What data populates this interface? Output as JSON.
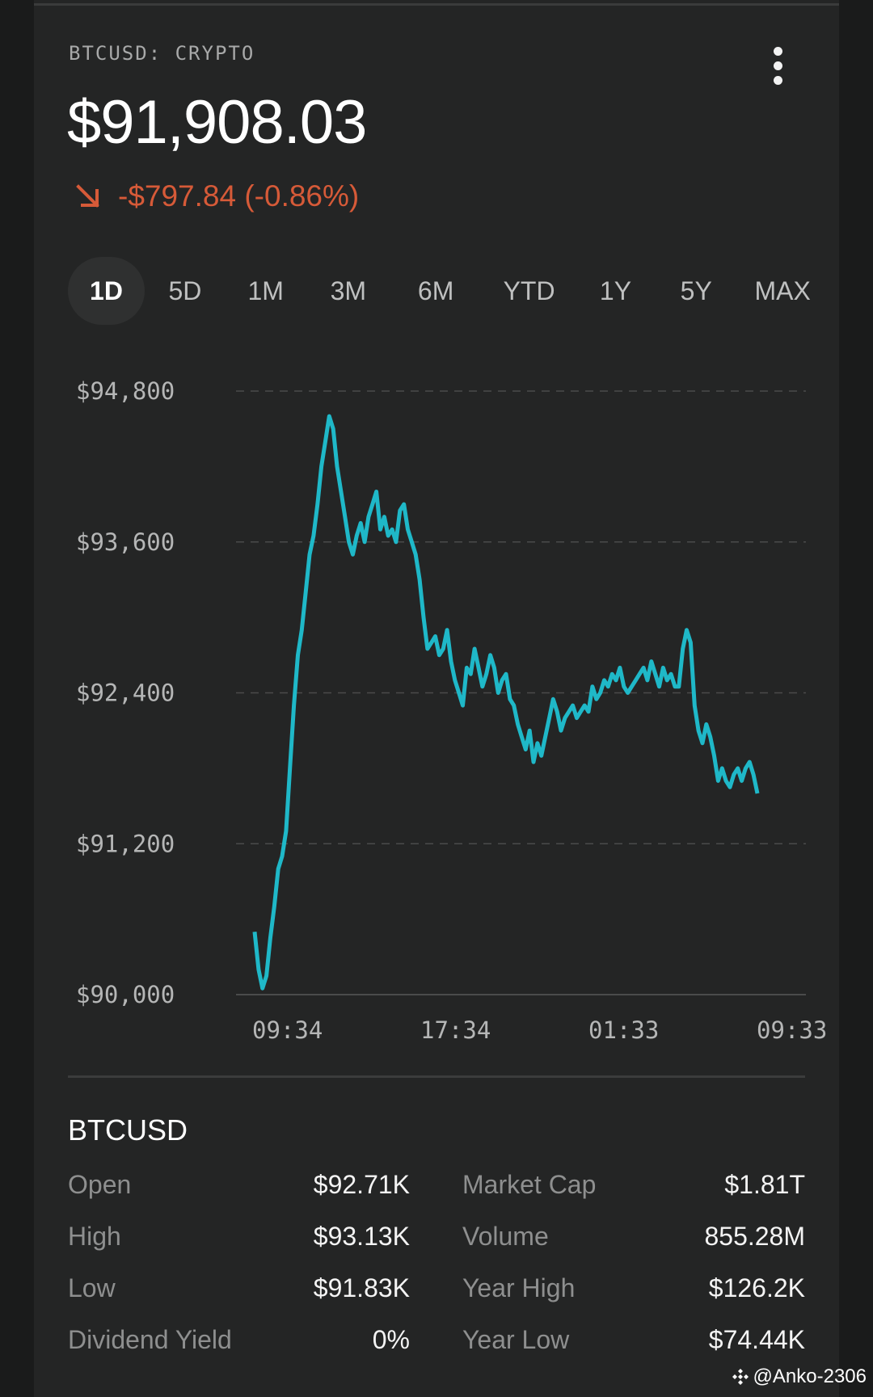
{
  "header": {
    "ticker": "BTCUSD: CRYPTO",
    "price": "$91,908.03",
    "change": "-$797.84 (-0.86%)",
    "change_color": "#d65a38"
  },
  "tabs": [
    {
      "label": "1D",
      "active": true
    },
    {
      "label": "5D",
      "active": false
    },
    {
      "label": "1M",
      "active": false
    },
    {
      "label": "3M",
      "active": false
    },
    {
      "label": "6M",
      "active": false
    },
    {
      "label": "YTD",
      "active": false
    },
    {
      "label": "1Y",
      "active": false
    },
    {
      "label": "5Y",
      "active": false
    },
    {
      "label": "MAX",
      "active": false
    }
  ],
  "chart_data": {
    "type": "line",
    "ylim": [
      90000,
      94800
    ],
    "y_ticks": [
      "$94,800",
      "$93,600",
      "$92,400",
      "$91,200",
      "$90,000"
    ],
    "x_ticks": [
      "09:34",
      "17:34",
      "01:33",
      "09:33"
    ],
    "grid": "dashed horizontal",
    "line_color": "#1fb8c8",
    "series": [
      {
        "values": [
          90500,
          90200,
          90050,
          90150,
          90450,
          90700,
          91000,
          91100,
          91300,
          91800,
          92300,
          92700,
          92900,
          93200,
          93500,
          93650,
          93900,
          94200,
          94400,
          94600,
          94500,
          94200,
          94000,
          93800,
          93600,
          93500,
          93650,
          93750,
          93600,
          93800,
          93900,
          94000,
          93700,
          93800,
          93650,
          93700,
          93600,
          93850,
          93900,
          93700,
          93600,
          93500,
          93300,
          93000,
          92750,
          92800,
          92850,
          92700,
          92750,
          92900,
          92650,
          92500,
          92400,
          92300,
          92600,
          92550,
          92750,
          92600,
          92450,
          92550,
          92700,
          92600,
          92400,
          92500,
          92550,
          92350,
          92300,
          92150,
          92050,
          91950,
          92100,
          91850,
          92000,
          91900,
          92050,
          92200,
          92350,
          92250,
          92100,
          92200,
          92250,
          92300,
          92200,
          92250,
          92300,
          92250,
          92450,
          92350,
          92400,
          92500,
          92450,
          92550,
          92500,
          92600,
          92450,
          92400,
          92450,
          92500,
          92550,
          92600,
          92500,
          92650,
          92550,
          92450,
          92600,
          92500,
          92550,
          92450,
          92450,
          92750,
          92900,
          92800,
          92300,
          92100,
          92000,
          92150,
          92050,
          91900,
          91700,
          91800,
          91700,
          91650,
          91750,
          91800,
          91700,
          91800,
          91850,
          91750,
          91600
        ]
      }
    ]
  },
  "stats": {
    "title": "BTCUSD",
    "left": [
      {
        "label": "Open",
        "value": "$92.71K"
      },
      {
        "label": "High",
        "value": "$93.13K"
      },
      {
        "label": "Low",
        "value": "$91.83K"
      },
      {
        "label": "Dividend Yield",
        "value": "0%"
      }
    ],
    "right": [
      {
        "label": "Market Cap",
        "value": "$1.81T"
      },
      {
        "label": "Volume",
        "value": "855.28M"
      },
      {
        "label": "Year High",
        "value": "$126.2K"
      },
      {
        "label": "Year Low",
        "value": "$74.44K"
      }
    ]
  },
  "watermark": "@Anko-2306"
}
